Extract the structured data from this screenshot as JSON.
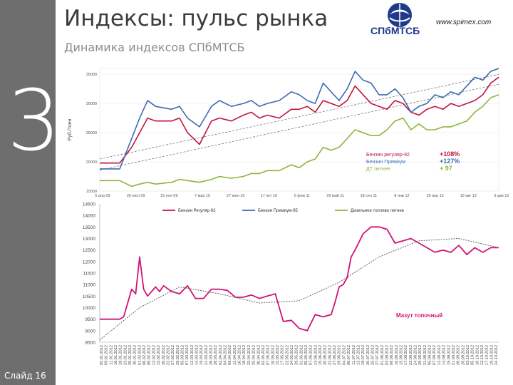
{
  "slide": {
    "section_number": "3",
    "slide_label": "Слайд 16",
    "title": "Индексы: пульс рынка",
    "subtitle": "Динамика индексов СПбМТСБ",
    "logo_text": "СПбМТСБ",
    "site_url": "www.spimex.com"
  },
  "colors": {
    "benzin92": "#c0143c",
    "premium95": "#3d6bb3",
    "diesel": "#8db53c",
    "mazut": "#d11277",
    "trend": "#555555",
    "sidebar": "#6e6e6e"
  },
  "chart_data": [
    {
      "type": "line",
      "ylabel": "Руб./тонн",
      "ylim": [
        15000,
        36000
      ],
      "yticks": [
        15000,
        20000,
        25000,
        30000,
        35000
      ],
      "ytick_labels": [
        "15000",
        "20000",
        "25000",
        "30000",
        "35000"
      ],
      "xtick_labels": [
        "5 апр 09",
        "26 июл 09",
        "15 ноя 09",
        "7 мар 10",
        "27 июн 10",
        "17 окт 10",
        "6 фев 11",
        "29 май 11",
        "18 сен 11",
        "8 янв 12",
        "29 апр 12",
        "19 авг 12",
        "9 дек 12"
      ],
      "legend_position": "bottom",
      "series": [
        {
          "name": "Бензин Регуляр-92",
          "x": [
            0,
            5,
            8,
            10,
            12,
            14,
            18,
            20,
            22,
            25,
            28,
            30,
            33,
            36,
            38,
            40,
            42,
            45,
            48,
            50,
            52,
            54,
            56,
            58,
            60,
            62,
            64,
            66,
            68,
            70,
            72,
            74,
            76,
            78,
            80,
            82,
            84,
            86,
            88,
            90,
            92,
            94,
            96,
            98,
            100
          ],
          "values": [
            19800,
            19800,
            22500,
            25000,
            27500,
            27000,
            27000,
            27500,
            25000,
            23000,
            27000,
            27500,
            27000,
            28000,
            28500,
            27500,
            28000,
            27500,
            29000,
            29000,
            29500,
            28500,
            30500,
            30000,
            29500,
            30500,
            33000,
            31500,
            30000,
            29500,
            29000,
            30500,
            30000,
            28500,
            28000,
            29000,
            29500,
            29000,
            30000,
            29500,
            30000,
            30500,
            31500,
            33500,
            34500
          ]
        },
        {
          "name": "Бензин Премиум-95",
          "x": [
            0,
            5,
            8,
            10,
            12,
            14,
            18,
            20,
            22,
            25,
            28,
            30,
            33,
            36,
            38,
            40,
            42,
            45,
            48,
            50,
            52,
            54,
            56,
            58,
            60,
            62,
            64,
            66,
            68,
            70,
            72,
            74,
            76,
            78,
            80,
            82,
            84,
            86,
            88,
            90,
            92,
            94,
            96,
            98,
            100
          ],
          "values": [
            18800,
            18800,
            24000,
            27500,
            30500,
            29500,
            29000,
            29500,
            27500,
            26000,
            29500,
            30500,
            29500,
            30000,
            30500,
            29500,
            30000,
            30500,
            32000,
            31500,
            30500,
            30000,
            33500,
            32000,
            30500,
            32500,
            35500,
            34000,
            33500,
            31500,
            31500,
            32500,
            31000,
            28500,
            29500,
            30000,
            31500,
            31000,
            32000,
            31500,
            33000,
            34500,
            34000,
            35500,
            36000
          ]
        },
        {
          "name": "Дизельное топливо летнее",
          "x": [
            0,
            5,
            8,
            10,
            12,
            14,
            18,
            20,
            22,
            25,
            28,
            30,
            33,
            36,
            38,
            40,
            42,
            45,
            48,
            50,
            52,
            54,
            56,
            58,
            60,
            62,
            64,
            66,
            68,
            70,
            72,
            74,
            76,
            78,
            80,
            82,
            84,
            86,
            88,
            90,
            92,
            94,
            96,
            98,
            100
          ],
          "values": [
            16800,
            16800,
            15800,
            16200,
            16500,
            16200,
            16500,
            17000,
            16800,
            16500,
            17000,
            17500,
            17200,
            17500,
            18000,
            18000,
            18500,
            18500,
            19500,
            19000,
            20000,
            20500,
            22500,
            22000,
            22500,
            24000,
            25500,
            25000,
            24500,
            24500,
            25500,
            27000,
            27500,
            25500,
            26500,
            25500,
            25500,
            26000,
            26000,
            26500,
            27000,
            28500,
            29500,
            31000,
            31500
          ]
        }
      ],
      "trend_bands": [
        {
          "y_start": 18600,
          "y_end": 33300
        },
        {
          "y_start": 20500,
          "y_end": 35000
        }
      ],
      "annotations": [
        {
          "text": "Бензин регуляр-92",
          "value": "+108%",
          "color": "#c0143c"
        },
        {
          "text": "Бензин Премиум",
          "value": "+127%",
          "color": "#3d6bb3"
        },
        {
          "text": "ДТ летнее",
          "value": "+ 97",
          "color": "#8db53c"
        }
      ]
    },
    {
      "type": "line",
      "ylim": [
        8500,
        14500
      ],
      "yticks": [
        8500,
        9000,
        9500,
        10000,
        10500,
        11000,
        11500,
        12000,
        12500,
        13000,
        13500,
        14000,
        14500
      ],
      "ytick_labels": [
        "8500",
        "9000",
        "9500",
        "10000",
        "10500",
        "11000",
        "11500",
        "12000",
        "12500",
        "13000",
        "13500",
        "14000",
        "14500"
      ],
      "xtick_labels": [
        "05.01.2012",
        "09.01.2012",
        "11.01.2012",
        "16.01.2012",
        "18.01.2012",
        "23.01.2012",
        "25.01.2012",
        "30.01.2012",
        "01.02.2012",
        "06.02.2012",
        "08.02.2012",
        "13.02.2012",
        "15.02.2012",
        "20.02.2012",
        "22.02.2012",
        "27.02.2012",
        "29.02.2012",
        "05.03.2012",
        "07.03.2012",
        "12.03.2012",
        "14.03.2012",
        "19.03.2012",
        "21.03.2012",
        "26.03.2012",
        "28.03.2012",
        "02.04.2012",
        "04.04.2012",
        "09.04.2012",
        "11.04.2012",
        "16.04.2012",
        "18.04.2012",
        "23.04.2012",
        "25.04.2012",
        "30.04.2012",
        "02.05.2012",
        "07.05.2012",
        "10.05.2012",
        "15.05.2012",
        "17.05.2012",
        "22.05.2012",
        "24.05.2012",
        "29.05.2012",
        "31.05.2012",
        "05.06.2012",
        "07.06.2012",
        "13.06.2012",
        "15.06.2012",
        "20.06.2012",
        "22.06.2012",
        "27.06.2012",
        "29.06.2012",
        "04.07.2012",
        "06.07.2012",
        "11.07.2012",
        "13.07.2012",
        "18.07.2012",
        "20.07.2012",
        "25.07.2012",
        "27.07.2012",
        "01.08.2012",
        "03.08.2012",
        "08.08.2012",
        "10.08.2012",
        "15.08.2012",
        "17.08.2012",
        "22.08.2012",
        "24.08.2012",
        "29.08.2012",
        "31.08.2012",
        "05.09.2012",
        "07.09.2012",
        "12.09.2012",
        "14.09.2012",
        "19.09.2012",
        "21.09.2012",
        "26.09.2012",
        "28.09.2012",
        "03.10.2012",
        "05.10.2012",
        "10.10.2012",
        "12.10.2012",
        "17.10.2012",
        "19.10.2012",
        "24.10.2012"
      ],
      "series": [
        {
          "name": "Мазут топочный",
          "x": [
            0,
            5,
            6,
            8,
            9,
            10,
            11,
            12,
            14,
            15,
            16,
            18,
            20,
            22,
            24,
            26,
            28,
            30,
            32,
            34,
            36,
            38,
            40,
            42,
            44,
            46,
            48,
            50,
            52,
            54,
            56,
            58,
            59,
            60,
            61,
            62,
            63,
            64,
            66,
            68,
            70,
            72,
            74,
            76,
            78,
            80,
            82,
            84,
            86,
            88,
            90,
            92,
            94,
            96,
            98,
            100
          ],
          "values": [
            9500,
            9500,
            9600,
            10800,
            10600,
            12200,
            10800,
            10500,
            10900,
            10700,
            10950,
            10700,
            10600,
            10950,
            10400,
            10400,
            10800,
            10800,
            10750,
            10450,
            10450,
            10550,
            10400,
            10500,
            10600,
            9400,
            9450,
            9100,
            9000,
            9700,
            9600,
            9700,
            10250,
            10900,
            11000,
            11300,
            12200,
            12500,
            13200,
            13500,
            13500,
            13400,
            12800,
            12900,
            13000,
            12800,
            12600,
            12400,
            12500,
            12400,
            12700,
            12300,
            12600,
            12400,
            12600,
            12600
          ]
        },
        {
          "name": "trend",
          "x": [
            0,
            10,
            20,
            30,
            40,
            50,
            60,
            70,
            80,
            90,
            100
          ],
          "values": [
            8600,
            10000,
            10900,
            10600,
            10200,
            10300,
            11100,
            12200,
            12900,
            13000,
            12600
          ]
        }
      ],
      "annotations": [
        {
          "text": "Мазут топочный",
          "color": "#d11277"
        }
      ]
    }
  ]
}
